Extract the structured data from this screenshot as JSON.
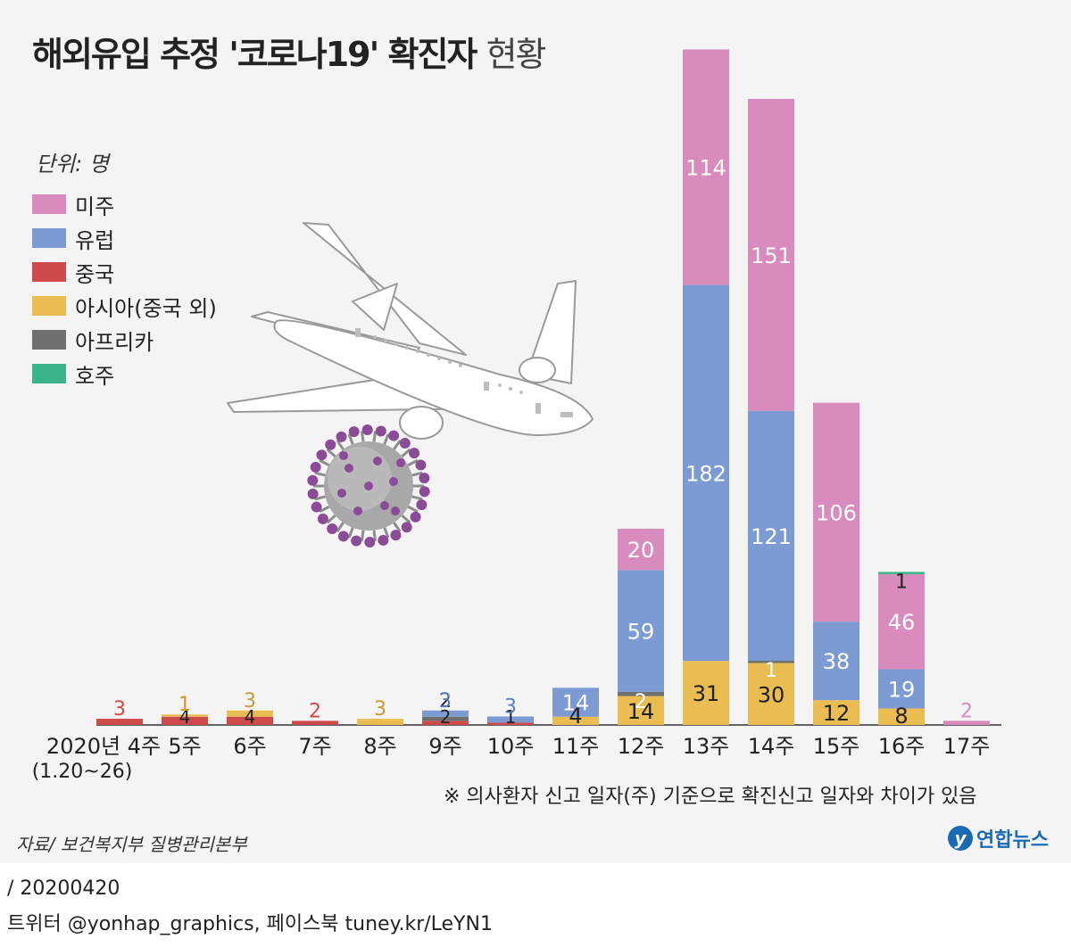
{
  "header": {
    "title_bold": "해외유입 추정 '코로나19' 확진자",
    "title_light": "현황"
  },
  "unit_label": "단위: 명",
  "legend": [
    {
      "key": "americas",
      "label": "미주",
      "color": "#d98bbd"
    },
    {
      "key": "europe",
      "label": "유럽",
      "color": "#7b9bd2"
    },
    {
      "key": "china",
      "label": "중국",
      "color": "#cf4b4b"
    },
    {
      "key": "asia",
      "label": "아시아(중국 외)",
      "color": "#e9bd52"
    },
    {
      "key": "africa",
      "label": "아프리카",
      "color": "#707070"
    },
    {
      "key": "australia",
      "label": "호주",
      "color": "#3bb48a"
    }
  ],
  "illustration": {
    "airplane": "airplane-icon",
    "virus": "virus-icon"
  },
  "chart_data": {
    "type": "bar",
    "stacked": true,
    "categories": [
      "2020년 4주",
      "5주",
      "6주",
      "7주",
      "8주",
      "9주",
      "10주",
      "11주",
      "12주",
      "13주",
      "14주",
      "15주",
      "16주",
      "17주"
    ],
    "category_sublabels": [
      "(1.20~26)",
      "",
      "",
      "",
      "",
      "",
      "",
      "",
      "",
      "",
      "",
      "",
      "",
      ""
    ],
    "series": [
      {
        "key": "china",
        "name": "중국",
        "color": "#cf4b4b",
        "values": [
          3,
          4,
          4,
          2,
          0,
          2,
          1,
          0,
          0,
          0,
          0,
          0,
          0,
          0
        ]
      },
      {
        "key": "asia",
        "name": "아시아(중국 외)",
        "color": "#e9bd52",
        "values": [
          0,
          1,
          3,
          0,
          3,
          0,
          0,
          4,
          14,
          31,
          30,
          12,
          8,
          0
        ]
      },
      {
        "key": "africa",
        "name": "아프리카",
        "color": "#707070",
        "values": [
          0,
          0,
          0,
          0,
          0,
          2,
          0,
          0,
          2,
          0,
          1,
          0,
          0,
          0
        ]
      },
      {
        "key": "europe",
        "name": "유럽",
        "color": "#7b9bd2",
        "values": [
          0,
          0,
          0,
          0,
          0,
          3,
          3,
          14,
          59,
          182,
          121,
          38,
          19,
          0
        ]
      },
      {
        "key": "americas",
        "name": "미주",
        "color": "#d98bbd",
        "values": [
          0,
          0,
          0,
          0,
          0,
          0,
          0,
          0,
          20,
          114,
          151,
          106,
          46,
          2
        ]
      },
      {
        "key": "australia",
        "name": "호주",
        "color": "#3bb48a",
        "values": [
          0,
          0,
          0,
          0,
          0,
          0,
          0,
          0,
          0,
          0,
          0,
          0,
          1,
          0
        ]
      }
    ],
    "ylim": [
      0,
      338
    ],
    "grid": false,
    "legend_position": "top-left"
  },
  "footnote": "※ 의사환자 신고 일자(주) 기준으로 확진신고 일자와 차이가 있음",
  "source": "자료/ 보건복지부 질병관리본부",
  "logo": {
    "mark": "y",
    "text": "연합뉴스"
  },
  "date_line": "/ 20200420",
  "social_line": "트위터 @yonhap_graphics, 페이스북 tuney.kr/LeYN1"
}
